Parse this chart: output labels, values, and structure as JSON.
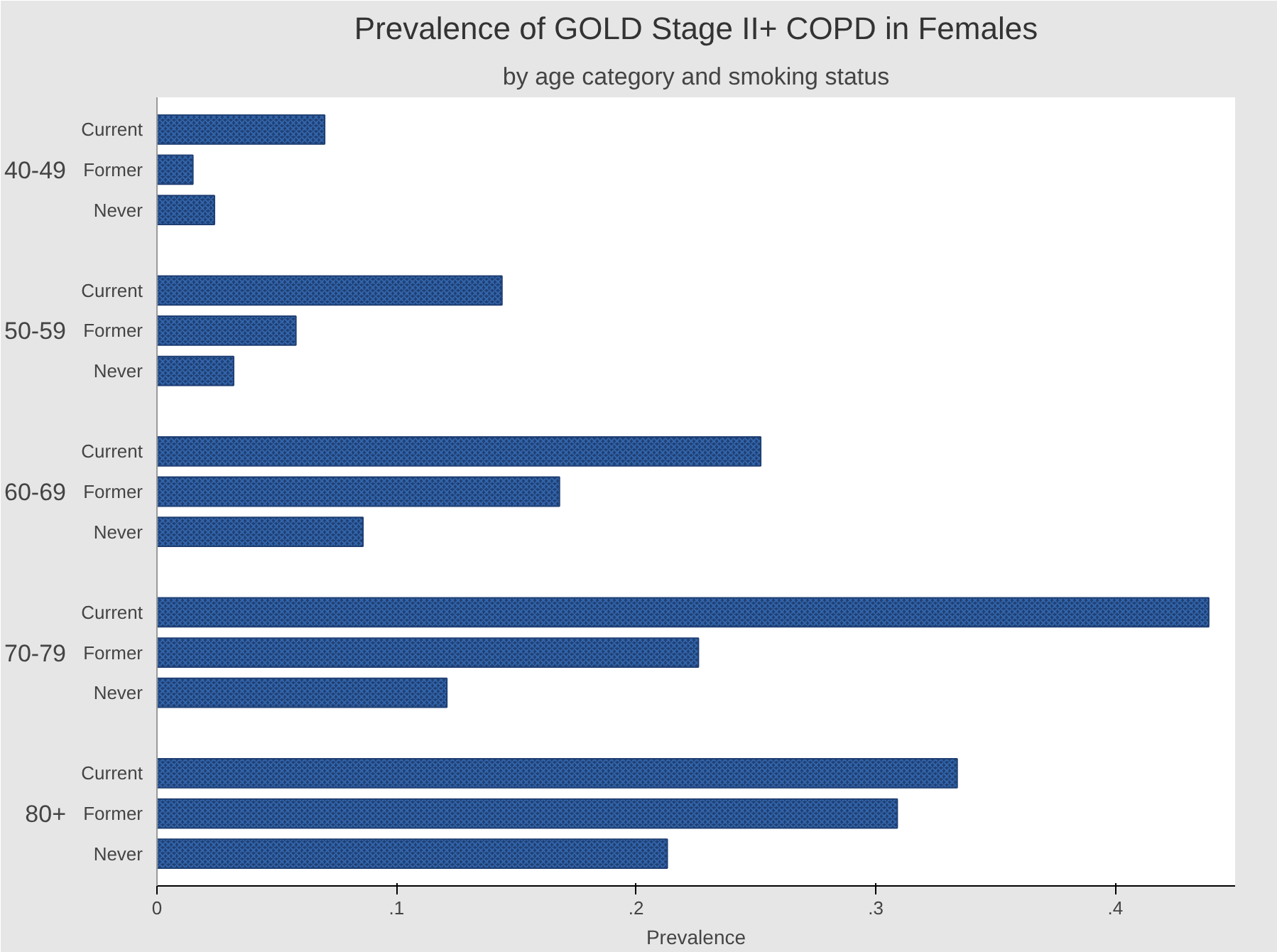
{
  "chart_data": {
    "type": "bar",
    "orientation": "horizontal",
    "title": "Prevalence of GOLD Stage II+ COPD in Females",
    "subtitle": "by age category and smoking status",
    "xlabel": "Prevalence",
    "categories": [
      "40-49",
      "50-59",
      "60-69",
      "70-79",
      "80+"
    ],
    "series": [
      {
        "name": "Current",
        "color": "#1f3f73",
        "values": [
          0.07,
          0.144,
          0.252,
          0.439,
          0.334
        ]
      },
      {
        "name": "Former",
        "color": "#1f3f73",
        "values": [
          0.015,
          0.058,
          0.168,
          0.226,
          0.309
        ]
      },
      {
        "name": "Never",
        "color": "#1f3f73",
        "values": [
          0.024,
          0.032,
          0.086,
          0.121,
          0.213
        ]
      }
    ],
    "xlim": [
      0,
      0.45
    ],
    "xticks": [
      0,
      {
        "value": 0.1,
        "label": ".1"
      },
      {
        "value": 0.2,
        "label": ".2"
      },
      {
        "value": 0.3,
        "label": ".3"
      },
      {
        "value": 0.4,
        "label": ".4"
      }
    ],
    "grid": false
  }
}
